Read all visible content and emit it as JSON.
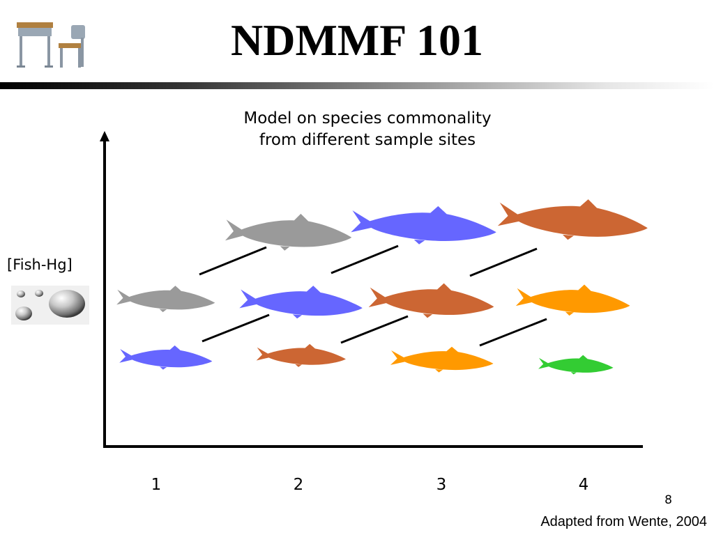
{
  "slide": {
    "title": "NDMMF 101",
    "page_number": "8",
    "credit": "Adapted from Wente, 2004"
  },
  "icons": {
    "desk": "school-desk-chair-icon",
    "mercury": "mercury-droplets-icon"
  },
  "diagram": {
    "subtitle_line1": "Model on species commonality",
    "subtitle_line2": "from different sample sites",
    "y_axis_label": "[Fish-Hg]",
    "x_ticks": [
      "1",
      "2",
      "3",
      "4"
    ],
    "fish_colors": {
      "gray": "#9a9a9a",
      "blue": "#6666ff",
      "rust": "#cc6633",
      "orange": "#ff9900",
      "green": "#33cc33"
    },
    "rows": [
      {
        "row": "top",
        "sites": [
          "gray",
          "blue",
          "rust"
        ]
      },
      {
        "row": "middle",
        "sites": [
          "gray",
          "blue",
          "rust",
          "orange"
        ]
      },
      {
        "row": "bottom",
        "sites": [
          "blue",
          "rust",
          "orange",
          "green"
        ]
      }
    ]
  }
}
